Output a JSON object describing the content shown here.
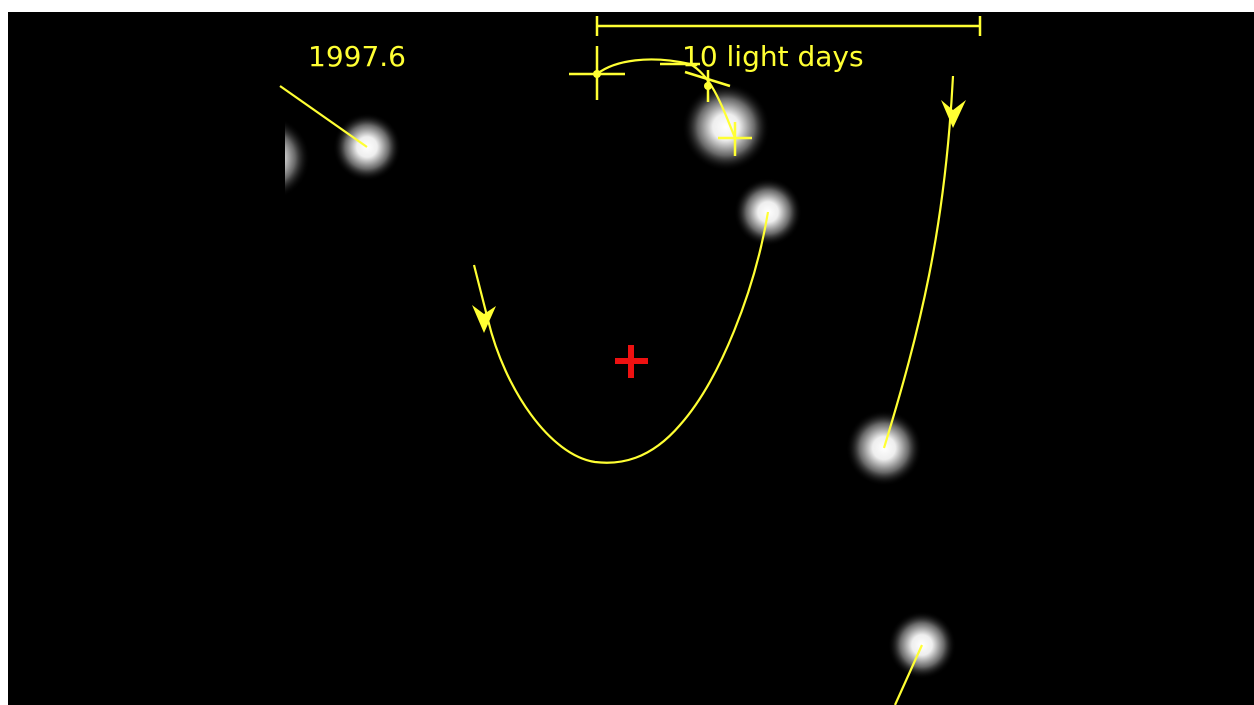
{
  "epoch": "1997.6",
  "scale_bar": {
    "label": "10 light days"
  }
}
